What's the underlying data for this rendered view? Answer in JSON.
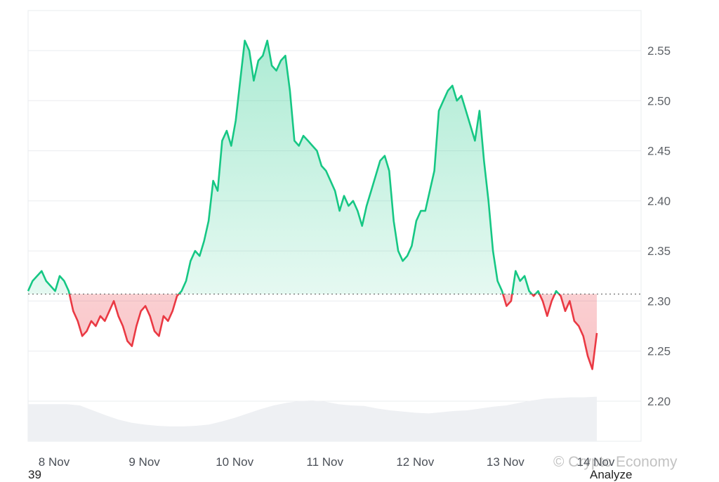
{
  "footer": {
    "left_label": "39",
    "right_label": "Analyze"
  },
  "watermark": "© Crypto Economy",
  "colors": {
    "up": "#16c784",
    "down": "#ea3943",
    "volume": "#eef0f3",
    "grid": "#eaecef",
    "baseline": "#555555"
  },
  "chart_data": {
    "type": "line",
    "title": "",
    "xlabel": "",
    "ylabel": "",
    "x_ticks": [
      "8 Nov",
      "9 Nov",
      "10 Nov",
      "11 Nov",
      "12 Nov",
      "13 Nov",
      "14 Nov"
    ],
    "y_ticks": [
      2.2,
      2.25,
      2.3,
      2.35,
      2.4,
      2.45,
      2.5,
      2.55
    ],
    "ylim": [
      2.16,
      2.59
    ],
    "xlim": [
      0,
      6.3
    ],
    "reference_price": 2.307,
    "series": [
      {
        "x": [
          0,
          0.05,
          0.1,
          0.15,
          0.2,
          0.25,
          0.3,
          0.35,
          0.4,
          0.45,
          0.5,
          0.55,
          0.6,
          0.65,
          0.7,
          0.75,
          0.8,
          0.85,
          0.9,
          0.95,
          1.0,
          1.05,
          1.1,
          1.15,
          1.2,
          1.25,
          1.3,
          1.35,
          1.4,
          1.45,
          1.5,
          1.55,
          1.6,
          1.65,
          1.7,
          1.75,
          1.8,
          1.85,
          1.9,
          1.95,
          2.0,
          2.05,
          2.1,
          2.15,
          2.2,
          2.25,
          2.3,
          2.35,
          2.4,
          2.45,
          2.5,
          2.55,
          2.6,
          2.65,
          2.7,
          2.75,
          2.8,
          2.85,
          2.9,
          2.95,
          3.0,
          3.05,
          3.1,
          3.15,
          3.2,
          3.25,
          3.3,
          3.35,
          3.4,
          3.45,
          3.5,
          3.55,
          3.6,
          3.65,
          3.7,
          3.75,
          3.8,
          3.85,
          3.9,
          3.95,
          4.0,
          4.05,
          4.1,
          4.15,
          4.2,
          4.25,
          4.3,
          4.35,
          4.4,
          4.45,
          4.5,
          4.55,
          4.6,
          4.65,
          4.7,
          4.75,
          4.8,
          4.85,
          4.9,
          4.95,
          5.0,
          5.05,
          5.1,
          5.15,
          5.2,
          5.25,
          5.3,
          5.35,
          5.4,
          5.45,
          5.5,
          5.55,
          5.6,
          5.65,
          5.7,
          5.75,
          5.8,
          5.85,
          5.9,
          5.95,
          6.0,
          6.05,
          6.1,
          6.15,
          6.2,
          6.25,
          6.3
        ],
        "y": [
          2.31,
          2.32,
          2.325,
          2.33,
          2.32,
          2.315,
          2.31,
          2.325,
          2.32,
          2.31,
          2.29,
          2.28,
          2.265,
          2.27,
          2.28,
          2.275,
          2.285,
          2.28,
          2.29,
          2.3,
          2.285,
          2.275,
          2.26,
          2.255,
          2.275,
          2.29,
          2.295,
          2.285,
          2.27,
          2.265,
          2.285,
          2.28,
          2.29,
          2.305,
          2.31,
          2.32,
          2.34,
          2.35,
          2.345,
          2.36,
          2.38,
          2.42,
          2.41,
          2.46,
          2.47,
          2.455,
          2.48,
          2.52,
          2.56,
          2.55,
          2.52,
          2.54,
          2.545,
          2.56,
          2.535,
          2.53,
          2.54,
          2.545,
          2.51,
          2.46,
          2.455,
          2.465,
          2.46,
          2.455,
          2.45,
          2.435,
          2.43,
          2.42,
          2.41,
          2.39,
          2.405,
          2.395,
          2.4,
          2.39,
          2.375,
          2.395,
          2.41,
          2.425,
          2.44,
          2.445,
          2.43,
          2.38,
          2.35,
          2.34,
          2.345,
          2.355,
          2.38,
          2.39,
          2.39,
          2.41,
          2.43,
          2.49,
          2.5,
          2.51,
          2.515,
          2.5,
          2.505,
          2.49,
          2.475,
          2.46,
          2.49,
          2.44,
          2.4,
          2.35,
          2.32,
          2.31,
          2.295,
          2.3,
          2.33,
          2.32,
          2.325,
          2.31,
          2.305,
          2.31,
          2.3,
          2.285,
          2.3,
          2.31,
          2.305,
          2.29,
          2.3,
          2.28,
          2.275,
          2.265,
          2.245,
          2.232,
          2.268
        ]
      }
    ],
    "volume": [
      0.6,
      0.6,
      0.6,
      0.6,
      0.58,
      0.5,
      0.42,
      0.35,
      0.3,
      0.27,
      0.25,
      0.24,
      0.24,
      0.25,
      0.27,
      0.32,
      0.38,
      0.45,
      0.52,
      0.58,
      0.62,
      0.65,
      0.66,
      0.64,
      0.6,
      0.58,
      0.57,
      0.53,
      0.5,
      0.48,
      0.46,
      0.45,
      0.47,
      0.49,
      0.5,
      0.53,
      0.56,
      0.58,
      0.62,
      0.66,
      0.69,
      0.7,
      0.71,
      0.71,
      0.72
    ]
  }
}
